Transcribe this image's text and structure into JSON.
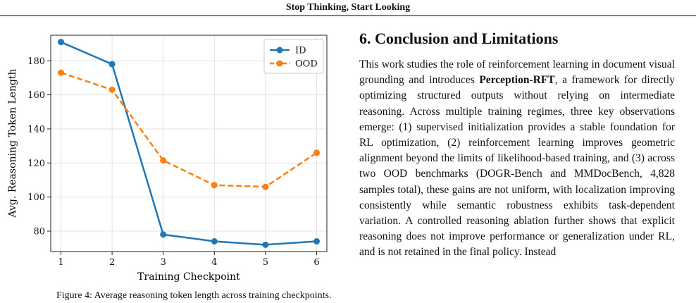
{
  "header": {
    "title": "Stop Thinking, Start Looking"
  },
  "section": {
    "title": "6. Conclusion and Limitations"
  },
  "paragraph": {
    "before": "This work studies the role of reinforcement learning in document visual grounding and introduces ",
    "bold": "Perception-RFT",
    "after": ", a framework for directly optimizing structured outputs without relying on intermediate reasoning. Across multiple training regimes, three key observations emerge: (1) supervised initialization provides a stable foundation for RL optimization, (2) reinforcement learning improves geometric alignment beyond the limits of likelihood-based training, and (3) across two OOD benchmarks (DOGR-Bench and MMDocBench, 4,828 samples total), these gains are not uniform, with localization improving consistently while semantic robustness exhibits task-dependent variation. A controlled reasoning ablation further shows that explicit reasoning does not improve performance or generalization under RL, and is not retained in the final policy. Instead"
  },
  "caption_fragment": "Figure 4: Average reasoning token length across training checkpoints.",
  "chart_data": {
    "type": "line",
    "x": [
      1,
      2,
      3,
      4,
      5,
      6
    ],
    "xticks": [
      "1",
      "2",
      "3",
      "4",
      "5",
      "6"
    ],
    "yticks": [
      "80",
      "100",
      "120",
      "140",
      "160",
      "180"
    ],
    "xlim": [
      0.8,
      6.2
    ],
    "ylim": [
      68,
      195
    ],
    "xlabel": "Training Checkpoint",
    "ylabel": "Avg. Reasoning Token Length",
    "grid": true,
    "legend_position": "top-right",
    "series": [
      {
        "name": "ID",
        "values": [
          191,
          178,
          78,
          74,
          72,
          74
        ],
        "color": "#1f77b4",
        "style": "solid",
        "marker": "circle"
      },
      {
        "name": "OOD",
        "values": [
          173,
          163,
          121.5,
          107,
          106,
          126
        ],
        "color": "#ff7f0e",
        "style": "dashed",
        "marker": "circle"
      }
    ]
  }
}
